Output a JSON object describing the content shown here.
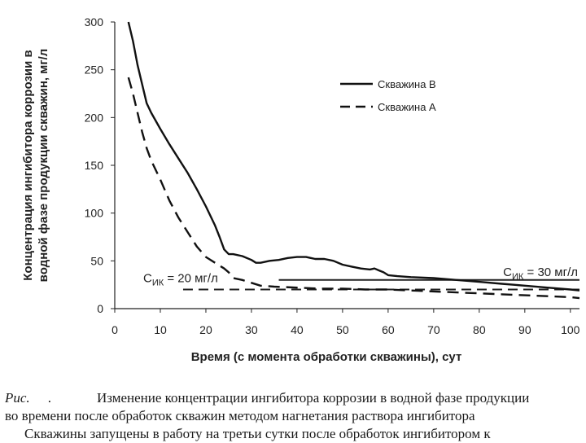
{
  "chart_data": {
    "type": "line",
    "xlabel": "Время (с момента обработки скважины), сут",
    "ylabel_lines": [
      "Концентрация ингибитора коррозии в",
      "водной фазе продукции скважин, мг/л"
    ],
    "xlim": [
      0,
      102
    ],
    "ylim": [
      0,
      300
    ],
    "xticks": [
      0,
      10,
      20,
      30,
      40,
      50,
      60,
      70,
      80,
      90,
      100
    ],
    "yticks": [
      0,
      50,
      100,
      150,
      200,
      250,
      300
    ],
    "legend": [
      {
        "label": "Скважина В",
        "style": "solid"
      },
      {
        "label": "Скважина А",
        "style": "dashed"
      }
    ],
    "series": [
      {
        "name": "Скважина В",
        "style": "solid",
        "x": [
          3,
          4,
          5,
          6,
          7,
          8,
          10,
          12,
          14,
          16,
          18,
          20,
          22,
          23,
          24,
          25,
          26,
          28,
          30,
          31,
          32,
          34,
          36,
          38,
          40,
          42,
          44,
          46,
          48,
          50,
          52,
          54,
          56,
          57,
          58,
          59,
          60,
          62,
          65,
          70,
          75,
          80,
          85,
          90,
          95,
          100,
          102
        ],
        "y": [
          300,
          280,
          255,
          235,
          215,
          205,
          188,
          172,
          157,
          142,
          125,
          107,
          87,
          75,
          62,
          57,
          57,
          55,
          51,
          48,
          48,
          50,
          51,
          53,
          54,
          54,
          52,
          52,
          50,
          46,
          44,
          42,
          41,
          42,
          40,
          38,
          35,
          34,
          33,
          32,
          30,
          28,
          26,
          24,
          22,
          20,
          19
        ]
      },
      {
        "name": "Скважина А",
        "style": "dashed",
        "x": [
          3,
          4,
          5,
          6,
          7,
          8,
          10,
          12,
          14,
          16,
          18,
          20,
          22,
          24,
          25,
          26,
          28,
          30,
          32,
          35,
          40,
          45,
          50,
          55,
          60,
          65,
          70,
          75,
          80,
          85,
          90,
          95,
          100,
          102
        ],
        "y": [
          242,
          225,
          205,
          185,
          168,
          155,
          135,
          113,
          95,
          80,
          65,
          54,
          48,
          42,
          38,
          32,
          30,
          27,
          24,
          23,
          22,
          21,
          21,
          20,
          20,
          19,
          18,
          17,
          16,
          15,
          14,
          13,
          12,
          11
        ]
      }
    ],
    "reference_lines": [
      {
        "label_main": "С",
        "label_sub": "ИК",
        "label_rest": " = 30 мг/л",
        "y": 30,
        "x_start": 36,
        "x_end": 102,
        "style": "solid",
        "label_position": "right-above"
      },
      {
        "label_main": "С",
        "label_sub": "ИК",
        "label_rest": " = 20 мг/л",
        "y": 20,
        "x_start": 15,
        "x_end": 102,
        "style": "dashed",
        "label_position": "left-above"
      }
    ]
  },
  "caption": {
    "prefix": "Рис.",
    "dot": ".",
    "line1": "Изменение концентрации ингибитора коррозии в водной фазе продукции",
    "line2": "во времени после обработок скважин методом нагнетания раствора ингибитора",
    "line3": "Скважины запущены в работу на третьи сутки после обработок ингибитором к"
  }
}
